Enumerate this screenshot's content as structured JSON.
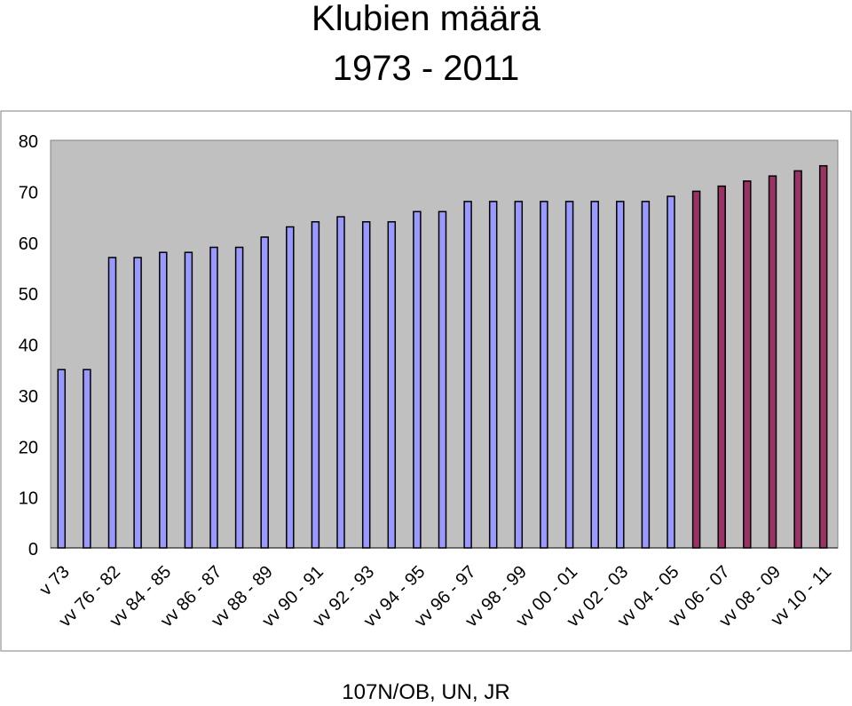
{
  "title": "Klubien määrä",
  "subtitle": "1973 - 2011",
  "footer": "107N/OB, UN, JR",
  "colors": {
    "series_early": "#9999ff",
    "series_late": "#993366",
    "plot_bg": "#c0c0c0",
    "bar_stroke": "#000000"
  },
  "chart_data": {
    "type": "bar",
    "title": "Klubien määrä\n1973 - 2011",
    "xlabel": "",
    "ylabel": "",
    "ylim": [
      0,
      80
    ],
    "yticks": [
      0,
      10,
      20,
      30,
      40,
      50,
      60,
      70,
      80
    ],
    "grid": false,
    "legend": "none",
    "categories": [
      "v 73",
      "",
      "vv 76 - 82",
      "",
      "vv 84 - 85",
      "",
      "vv 86 - 87",
      "",
      "vv 88 - 89",
      "",
      "vv 90 - 91",
      "",
      "vv 92 - 93",
      "",
      "vv 94 - 95",
      "",
      "vv 96 - 97",
      "",
      "vv 98 - 99",
      "",
      "vv 00 - 01",
      "",
      "vv 02 - 03",
      "",
      "vv 04 - 05",
      "",
      "vv 06 - 07",
      "",
      "vv 08 - 09",
      "",
      "vv 10 - 11"
    ],
    "values": [
      35,
      35,
      57,
      57,
      58,
      58,
      59,
      59,
      61,
      63,
      64,
      65,
      64,
      64,
      66,
      66,
      68,
      68,
      68,
      68,
      68,
      68,
      68,
      68,
      69,
      70,
      71,
      72,
      73,
      74,
      75
    ],
    "bar_colors": [
      "#9999ff",
      "#9999ff",
      "#9999ff",
      "#9999ff",
      "#9999ff",
      "#9999ff",
      "#9999ff",
      "#9999ff",
      "#9999ff",
      "#9999ff",
      "#9999ff",
      "#9999ff",
      "#9999ff",
      "#9999ff",
      "#9999ff",
      "#9999ff",
      "#9999ff",
      "#9999ff",
      "#9999ff",
      "#9999ff",
      "#9999ff",
      "#9999ff",
      "#9999ff",
      "#9999ff",
      "#9999ff",
      "#993366",
      "#993366",
      "#993366",
      "#993366",
      "#993366",
      "#993366"
    ]
  }
}
